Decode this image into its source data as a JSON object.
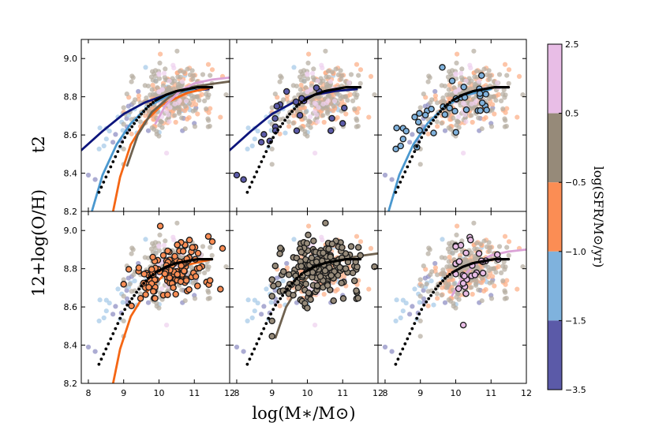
{
  "chart_data": {
    "type": "scatter",
    "layout": "2x3 grid of panels with shared axes and a discrete colorbar",
    "xlabel": "log(M∗/M⊙)",
    "ylabel": "12+log(O/H)",
    "ylabel_tag": "t2",
    "xlim": [
      7.8,
      12.0
    ],
    "ylim": [
      8.2,
      9.1
    ],
    "xticks": [
      "8",
      "9",
      "10",
      "11",
      "12"
    ],
    "yticks": [
      "8.2",
      "8.4",
      "8.6",
      "8.8",
      "9.0"
    ],
    "grid": false,
    "colorbar": {
      "label": "log(SFR/M⊙/yr)",
      "ticks": [
        "2.5",
        "0.5",
        "−0.5",
        "−1.0",
        "−1.5",
        "−3.5"
      ],
      "bins": [
        {
          "range": "-3.5 to -1.5",
          "color": "#5b5aa8"
        },
        {
          "range": "-1.5 to -1.0",
          "color": "#7fb2dd"
        },
        {
          "range": "-1.0 to -0.5",
          "color": "#fb8d54"
        },
        {
          "range": "-0.5 to 0.5",
          "color": "#968a79"
        },
        {
          "range": "0.5 to 2.5",
          "color": "#e8bde6"
        }
      ]
    },
    "bin_curve_colors": [
      "#0d157c",
      "#4a98cf",
      "#f56614",
      "#6f6250",
      "#dba2d6"
    ],
    "panels": [
      {
        "position": "top-left",
        "highlight_bin": null,
        "show_fits": [
          0,
          1,
          2,
          3,
          4
        ]
      },
      {
        "position": "top-middle",
        "highlight_bin": 0,
        "show_fits": [
          0
        ]
      },
      {
        "position": "top-right",
        "highlight_bin": 1,
        "show_fits": [
          1
        ]
      },
      {
        "position": "bottom-left",
        "highlight_bin": 2,
        "show_fits": [
          2
        ]
      },
      {
        "position": "bottom-middle",
        "highlight_bin": 3,
        "show_fits": [
          3
        ]
      },
      {
        "position": "bottom-right",
        "highlight_bin": 4,
        "show_fits": [
          4
        ]
      }
    ],
    "bin_fits": [
      {
        "bin": 0,
        "x": [
          7.8,
          8.4,
          9.0,
          9.6,
          10.2,
          10.8,
          11.4
        ],
        "y": [
          8.52,
          8.62,
          8.71,
          8.77,
          8.81,
          8.83,
          8.84
        ]
      },
      {
        "bin": 1,
        "x": [
          8.1,
          8.4,
          8.8,
          9.2,
          9.7,
          10.3,
          11.0
        ],
        "y": [
          8.2,
          8.39,
          8.55,
          8.66,
          8.75,
          8.81,
          8.84
        ]
      },
      {
        "bin": 2,
        "x": [
          8.7,
          8.9,
          9.2,
          9.6,
          10.1,
          10.8,
          11.5
        ],
        "y": [
          8.2,
          8.38,
          8.55,
          8.67,
          8.76,
          8.82,
          8.85
        ]
      },
      {
        "bin": 3,
        "x": [
          9.1,
          9.4,
          9.8,
          10.3,
          10.9,
          11.6,
          12.0
        ],
        "y": [
          8.44,
          8.6,
          8.72,
          8.8,
          8.85,
          8.87,
          8.88
        ]
      },
      {
        "bin": 4,
        "x": [
          9.9,
          10.2,
          10.6,
          11.0,
          11.5,
          12.0
        ],
        "y": [
          8.66,
          8.76,
          8.83,
          8.87,
          8.89,
          8.9
        ]
      }
    ],
    "reference_fit": {
      "style": "dotted black, then solid black",
      "dotted_x": [
        8.3,
        8.5,
        8.7,
        8.9,
        9.1,
        9.3,
        9.5,
        9.7,
        9.9
      ],
      "dotted_y": [
        8.3,
        8.38,
        8.46,
        8.54,
        8.61,
        8.66,
        8.71,
        8.75,
        8.78
      ],
      "solid_x": [
        9.9,
        10.2,
        10.5,
        10.8,
        11.1,
        11.5
      ],
      "solid_y": [
        8.78,
        8.81,
        8.83,
        8.84,
        8.85,
        8.85
      ]
    },
    "points_description": "about 400 galaxies per panel, masses 8.0-11.9, metallicities 8.29-9.06, colored by SFR bin"
  }
}
